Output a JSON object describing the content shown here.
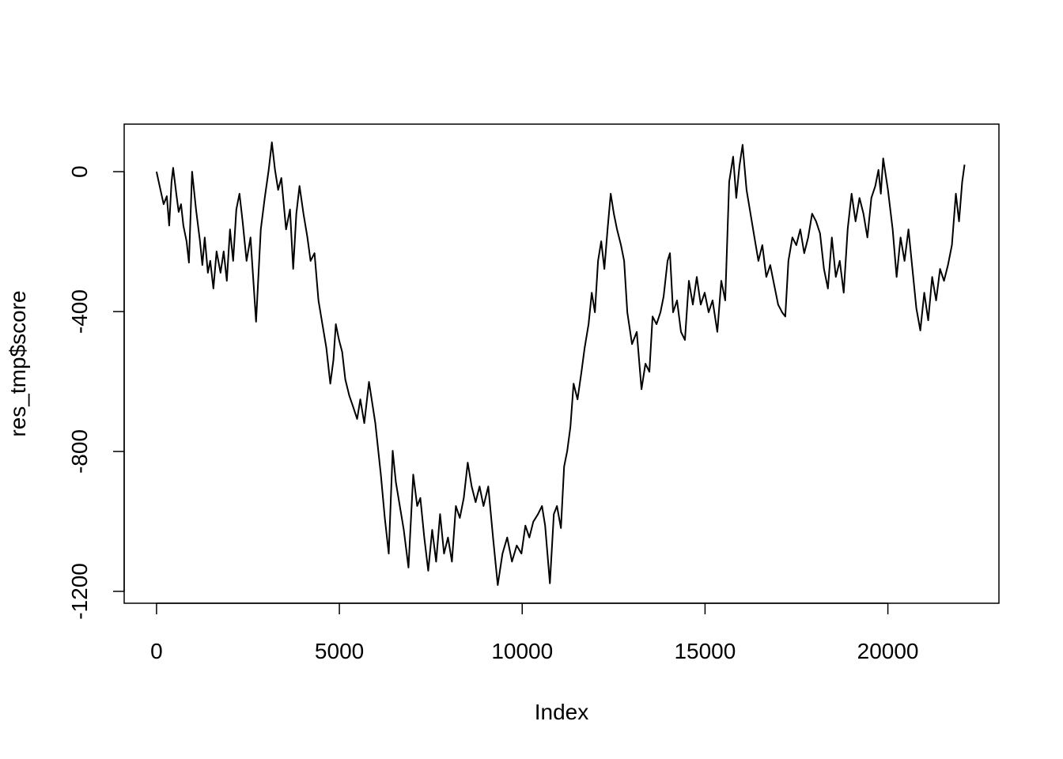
{
  "chart_data": {
    "type": "line",
    "x_label": "Index",
    "y_label": "res_tmp$score",
    "xlim": [
      -885,
      23037
    ],
    "ylim": [
      -1234,
      136
    ],
    "xticks": [
      0,
      5000,
      10000,
      15000,
      20000
    ],
    "yticks": [
      -1200,
      -800,
      -400,
      0
    ],
    "color": "#000000",
    "x": [
      0,
      108,
      194,
      281,
      346,
      410,
      454,
      540,
      605,
      670,
      734,
      821,
      886,
      972,
      1080,
      1188,
      1253,
      1318,
      1404,
      1469,
      1555,
      1642,
      1750,
      1836,
      1922,
      2009,
      2095,
      2182,
      2268,
      2354,
      2462,
      2570,
      2722,
      2851,
      2959,
      3067,
      3154,
      3240,
      3326,
      3413,
      3542,
      3650,
      3737,
      3823,
      3910,
      4018,
      4126,
      4212,
      4320,
      4428,
      4536,
      4644,
      4752,
      4838,
      4903,
      4990,
      5076,
      5162,
      5270,
      5378,
      5486,
      5573,
      5681,
      5810,
      5983,
      6134,
      6242,
      6350,
      6458,
      6545,
      6653,
      6761,
      6890,
      7020,
      7128,
      7214,
      7322,
      7430,
      7538,
      7646,
      7754,
      7862,
      7970,
      8078,
      8186,
      8294,
      8402,
      8510,
      8618,
      8726,
      8834,
      8942,
      9072,
      9202,
      9331,
      9461,
      9590,
      9720,
      9850,
      9979,
      10087,
      10195,
      10303,
      10433,
      10541,
      10627,
      10757,
      10865,
      10951,
      11059,
      11146,
      11232,
      11318,
      11405,
      11513,
      11621,
      11707,
      11815,
      11902,
      11988,
      12074,
      12161,
      12247,
      12334,
      12420,
      12506,
      12593,
      12701,
      12787,
      12874,
      13003,
      13133,
      13262,
      13370,
      13478,
      13565,
      13673,
      13781,
      13867,
      13975,
      14040,
      14126,
      14234,
      14342,
      14450,
      14558,
      14666,
      14774,
      14882,
      14990,
      15098,
      15206,
      15336,
      15444,
      15552,
      15660,
      15768,
      15854,
      15941,
      16027,
      16135,
      16243,
      16351,
      16459,
      16567,
      16675,
      16783,
      16891,
      16999,
      17107,
      17194,
      17280,
      17388,
      17496,
      17604,
      17712,
      17820,
      17928,
      18036,
      18144,
      18252,
      18360,
      18468,
      18576,
      18684,
      18792,
      18900,
      19008,
      19116,
      19224,
      19332,
      19440,
      19548,
      19656,
      19742,
      19807,
      19872,
      20002,
      20131,
      20239,
      20347,
      20455,
      20563,
      20671,
      20779,
      20887,
      20995,
      21103,
      21211,
      21319,
      21427,
      21535,
      21643,
      21751,
      21859,
      21946,
      22032,
      22097
    ],
    "values": [
      0,
      -52,
      -93,
      -70,
      -154,
      -29,
      11,
      -63,
      -115,
      -93,
      -154,
      -199,
      -260,
      0,
      -108,
      -199,
      -267,
      -188,
      -289,
      -255,
      -334,
      -228,
      -289,
      -228,
      -312,
      -165,
      -255,
      -108,
      -63,
      -142,
      -255,
      -188,
      -429,
      -165,
      -75,
      5,
      84,
      5,
      -52,
      -18,
      -165,
      -108,
      -278,
      -120,
      -41,
      -120,
      -188,
      -255,
      -233,
      -368,
      -436,
      -504,
      -606,
      -538,
      -436,
      -481,
      -515,
      -594,
      -640,
      -673,
      -707,
      -651,
      -719,
      -601,
      -719,
      -866,
      -990,
      -1092,
      -798,
      -888,
      -956,
      -1024,
      -1132,
      -866,
      -956,
      -933,
      -1046,
      -1141,
      -1024,
      -1115,
      -979,
      -1092,
      -1046,
      -1115,
      -956,
      -990,
      -933,
      -832,
      -900,
      -945,
      -900,
      -956,
      -900,
      -1046,
      -1182,
      -1092,
      -1046,
      -1115,
      -1069,
      -1092,
      -1012,
      -1046,
      -1001,
      -979,
      -956,
      -1012,
      -1177,
      -979,
      -956,
      -1019,
      -843,
      -798,
      -730,
      -606,
      -651,
      -572,
      -504,
      -436,
      -346,
      -402,
      -255,
      -199,
      -278,
      -165,
      -63,
      -120,
      -165,
      -210,
      -255,
      -402,
      -493,
      -458,
      -622,
      -549,
      -572,
      -414,
      -436,
      -402,
      -357,
      -255,
      -233,
      -402,
      -368,
      -458,
      -481,
      -312,
      -380,
      -301,
      -380,
      -346,
      -402,
      -368,
      -458,
      -312,
      -368,
      -29,
      43,
      -75,
      16,
      77,
      -52,
      -120,
      -188,
      -255,
      -210,
      -301,
      -267,
      -324,
      -380,
      -402,
      -414,
      -255,
      -188,
      -210,
      -165,
      -233,
      -188,
      -120,
      -142,
      -176,
      -278,
      -334,
      -188,
      -301,
      -255,
      -346,
      -165,
      -63,
      -142,
      -75,
      -120,
      -188,
      -75,
      -41,
      5,
      -63,
      38,
      -52,
      -165,
      -301,
      -188,
      -255,
      -165,
      -278,
      -391,
      -454,
      -346,
      -425,
      -301,
      -368,
      -278,
      -312,
      -267,
      -210,
      -63,
      -142,
      -29,
      20
    ]
  }
}
